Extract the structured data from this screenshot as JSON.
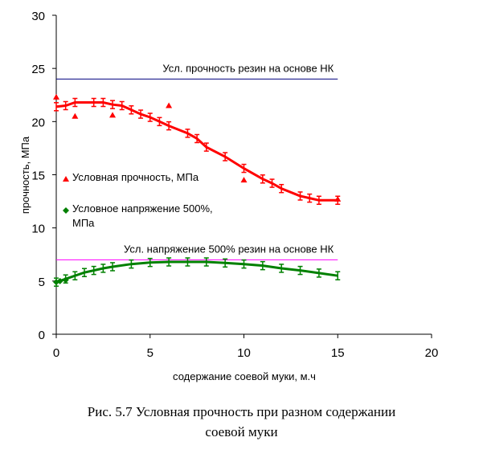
{
  "chart_data": {
    "type": "scatter",
    "xlabel": "содержание соевой муки, м.ч",
    "ylabel": "прочность, МПа",
    "xlim": [
      0,
      20
    ],
    "ylim": [
      0,
      30
    ],
    "xticks": [
      "0",
      "5",
      "10",
      "15",
      "20"
    ],
    "yticks": [
      "0",
      "5",
      "10",
      "15",
      "20",
      "25",
      "30"
    ],
    "grid": false,
    "legend_position": "left-middle",
    "series": [
      {
        "name": "Условная прочность, МПа",
        "color": "#ff0000",
        "marker": "triangle",
        "points": [
          [
            0,
            22.3
          ],
          [
            1,
            20.5
          ],
          [
            3,
            20.6
          ],
          [
            6,
            21.5
          ],
          [
            10,
            14.5
          ],
          [
            15,
            12.7
          ]
        ],
        "trend": [
          [
            0,
            21.4
          ],
          [
            0.5,
            21.5
          ],
          [
            1,
            21.8
          ],
          [
            2,
            21.8
          ],
          [
            2.5,
            21.8
          ],
          [
            3,
            21.6
          ],
          [
            3.5,
            21.5
          ],
          [
            4,
            21.1
          ],
          [
            4.5,
            20.7
          ],
          [
            5,
            20.4
          ],
          [
            5.5,
            20.0
          ],
          [
            6,
            19.6
          ],
          [
            7,
            18.9
          ],
          [
            7.5,
            18.4
          ],
          [
            8,
            17.6
          ],
          [
            9,
            16.7
          ],
          [
            10,
            15.6
          ],
          [
            11,
            14.6
          ],
          [
            11.5,
            14.2
          ],
          [
            12,
            13.7
          ],
          [
            13,
            13.0
          ],
          [
            13.5,
            12.8
          ],
          [
            14,
            12.6
          ],
          [
            15,
            12.6
          ]
        ]
      },
      {
        "name": "Условное напряжение 500%, МПа",
        "name_lines": [
          "Условное напряжение 500%,",
          "МПа"
        ],
        "color": "#008000",
        "marker": "diamond",
        "points": [
          [
            0,
            4.9
          ],
          [
            0.2,
            5.0
          ],
          [
            0.5,
            5.1
          ]
        ],
        "trend": [
          [
            0,
            4.9
          ],
          [
            0.5,
            5.2
          ],
          [
            1,
            5.5
          ],
          [
            1.5,
            5.8
          ],
          [
            2,
            6.0
          ],
          [
            2.5,
            6.2
          ],
          [
            3,
            6.35
          ],
          [
            4,
            6.6
          ],
          [
            5,
            6.75
          ],
          [
            6,
            6.8
          ],
          [
            7,
            6.8
          ],
          [
            8,
            6.8
          ],
          [
            9,
            6.7
          ],
          [
            10,
            6.6
          ],
          [
            11,
            6.45
          ],
          [
            12,
            6.2
          ],
          [
            13,
            6.0
          ],
          [
            14,
            5.75
          ],
          [
            15,
            5.5
          ]
        ]
      }
    ],
    "reference_lines": [
      {
        "label": "Усл. прочность резин на основе НК",
        "y": 24,
        "x_range": [
          0,
          15
        ],
        "color": "#000080"
      },
      {
        "label": "Усл. напряжение 500% резин на основе НК",
        "y": 7,
        "x_range": [
          0,
          15
        ],
        "color": "#ff00ff"
      }
    ]
  },
  "caption": {
    "line1": "Рис. 5.7 Условная прочность при разном содержании",
    "line2": "соевой муки"
  }
}
